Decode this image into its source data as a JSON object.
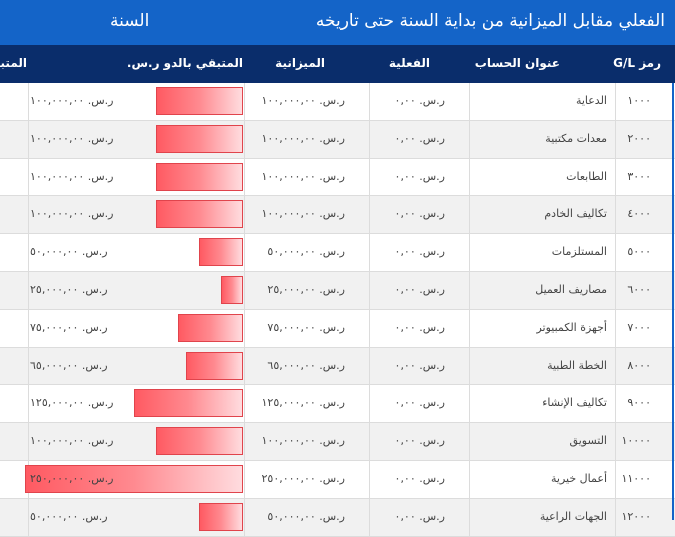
{
  "banner": {
    "title": "الفعلي مقابل الميزانية من بداية السنة حتى تاريخه",
    "period": "السنة"
  },
  "columns": {
    "gl": "رمز G/L",
    "account": "عنوان الحساب",
    "actual": "الفعلية",
    "budget": "الميزانية",
    "remaining": "المتبقي بالدو ر.س.",
    "cut": "المتبق"
  },
  "colors": {
    "banner": "#1464c8",
    "header": "#0a2d6b",
    "bar": "#ff5a62"
  },
  "rows": [
    {
      "gl": "١٠٠٠",
      "account": "الدعاية",
      "actual": "ر.س. ٠,٠٠",
      "budget": "ر.س. ١٠٠,٠٠٠,٠٠",
      "remaining": "ر.س. ١٠٠,٠٠٠,٠٠",
      "fraction": 0.4
    },
    {
      "gl": "٢٠٠٠",
      "account": "معدات مكتبية",
      "actual": "ر.س. ٠,٠٠",
      "budget": "ر.س. ١٠٠,٠٠٠,٠٠",
      "remaining": "ر.س. ١٠٠,٠٠٠,٠٠",
      "fraction": 0.4
    },
    {
      "gl": "٣٠٠٠",
      "account": "الطابعات",
      "actual": "ر.س. ٠,٠٠",
      "budget": "ر.س. ١٠٠,٠٠٠,٠٠",
      "remaining": "ر.س. ١٠٠,٠٠٠,٠٠",
      "fraction": 0.4
    },
    {
      "gl": "٤٠٠٠",
      "account": "تكاليف الخادم",
      "actual": "ر.س. ٠,٠٠",
      "budget": "ر.س. ١٠٠,٠٠٠,٠٠",
      "remaining": "ر.س. ١٠٠,٠٠٠,٠٠",
      "fraction": 0.4
    },
    {
      "gl": "٥٠٠٠",
      "account": "المستلزمات",
      "actual": "ر.س. ٠,٠٠",
      "budget": "ر.س. ٥٠,٠٠٠,٠٠",
      "remaining": "ر.س. ٥٠,٠٠٠,٠٠",
      "fraction": 0.2
    },
    {
      "gl": "٦٠٠٠",
      "account": "مصاريف العميل",
      "actual": "ر.س. ٠,٠٠",
      "budget": "ر.س. ٢٥,٠٠٠,٠٠",
      "remaining": "ر.س. ٢٥,٠٠٠,٠٠",
      "fraction": 0.1
    },
    {
      "gl": "٧٠٠٠",
      "account": "أجهزة الكمبيوتر",
      "actual": "ر.س. ٠,٠٠",
      "budget": "ر.س. ٧٥,٠٠٠,٠٠",
      "remaining": "ر.س. ٧٥,٠٠٠,٠٠",
      "fraction": 0.3
    },
    {
      "gl": "٨٠٠٠",
      "account": "الخطة الطبية",
      "actual": "ر.س. ٠,٠٠",
      "budget": "ر.س. ٦٥,٠٠٠,٠٠",
      "remaining": "ر.س. ٦٥,٠٠٠,٠٠",
      "fraction": 0.26
    },
    {
      "gl": "٩٠٠٠",
      "account": "تكاليف الإنشاء",
      "actual": "ر.س. ٠,٠٠",
      "budget": "ر.س. ١٢٥,٠٠٠,٠٠",
      "remaining": "ر.س. ١٢٥,٠٠٠,٠٠",
      "fraction": 0.5
    },
    {
      "gl": "١٠٠٠٠",
      "account": "التسويق",
      "actual": "ر.س. ٠,٠٠",
      "budget": "ر.س. ١٠٠,٠٠٠,٠٠",
      "remaining": "ر.س. ١٠٠,٠٠٠,٠٠",
      "fraction": 0.4
    },
    {
      "gl": "١١٠٠٠",
      "account": "أعمال خيرية",
      "actual": "ر.س. ٠,٠٠",
      "budget": "ر.س. ٢٥٠,٠٠٠,٠٠",
      "remaining": "ر.س. ٢٥٠,٠٠٠,٠٠",
      "fraction": 1.0
    },
    {
      "gl": "١٢٠٠٠",
      "account": "الجهات الراعية",
      "actual": "ر.س. ٠,٠٠",
      "budget": "ر.س. ٥٠,٠٠٠,٠٠",
      "remaining": "ر.س. ٥٠,٠٠٠,٠٠",
      "fraction": 0.2
    }
  ]
}
